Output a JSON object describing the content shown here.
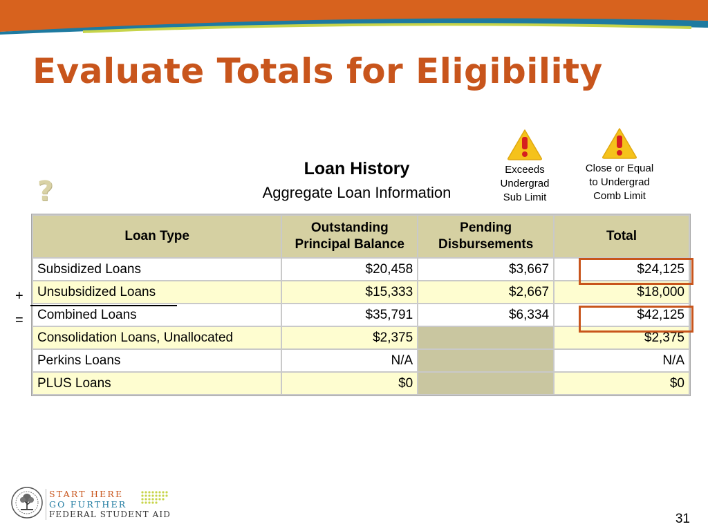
{
  "slide": {
    "title": "Evaluate Totals for Eligibility",
    "page_number": "31",
    "colors": {
      "title": "#c8551c",
      "highlight": "#c8551c",
      "banner_blue": "#1e7aa0",
      "header_bg": "#d5d0a2",
      "row_alt_bg": "#fefdd0"
    }
  },
  "help_icon": {
    "icon": "question-mark-icon",
    "glyph": "?"
  },
  "loan_panel": {
    "title": "Loan History",
    "subtitle": "Aggregate Loan Information"
  },
  "legend": [
    {
      "icon": "warning-exclamation-icon",
      "text": "Exceeds\nUndergrad\nSub Limit"
    },
    {
      "icon": "warning-exclamation-icon",
      "text": "Close or Equal\nto Undergrad\nComb Limit"
    }
  ],
  "table": {
    "headers": [
      "Loan Type",
      "Outstanding Principal Balance",
      "Pending Disbursements",
      "Total"
    ],
    "rows": [
      {
        "type": "Subsidized Loans",
        "outstanding": "$20,458",
        "pending": "$3,667",
        "total": "$24,125"
      },
      {
        "type": "Unsubsidized Loans",
        "outstanding": "$15,333",
        "pending": "$2,667",
        "total": "$18,000"
      },
      {
        "type": "Combined Loans",
        "outstanding": "$35,791",
        "pending": "$6,334",
        "total": "$42,125"
      },
      {
        "type": "Consolidation Loans, Unallocated",
        "outstanding": "$2,375",
        "pending": "",
        "total": "$2,375"
      },
      {
        "type": "Perkins Loans",
        "outstanding": "N/A",
        "pending": "",
        "total": "N/A"
      },
      {
        "type": "PLUS Loans",
        "outstanding": "$0",
        "pending": "",
        "total": "$0"
      }
    ]
  },
  "annotations": {
    "plus_sign": "+",
    "equals_sign": "="
  },
  "footer": {
    "line1": "START HERE",
    "line2": "GO FURTHER",
    "line3": "FEDERAL STUDENT AID",
    "seal_icon": "department-of-education-seal-icon"
  }
}
